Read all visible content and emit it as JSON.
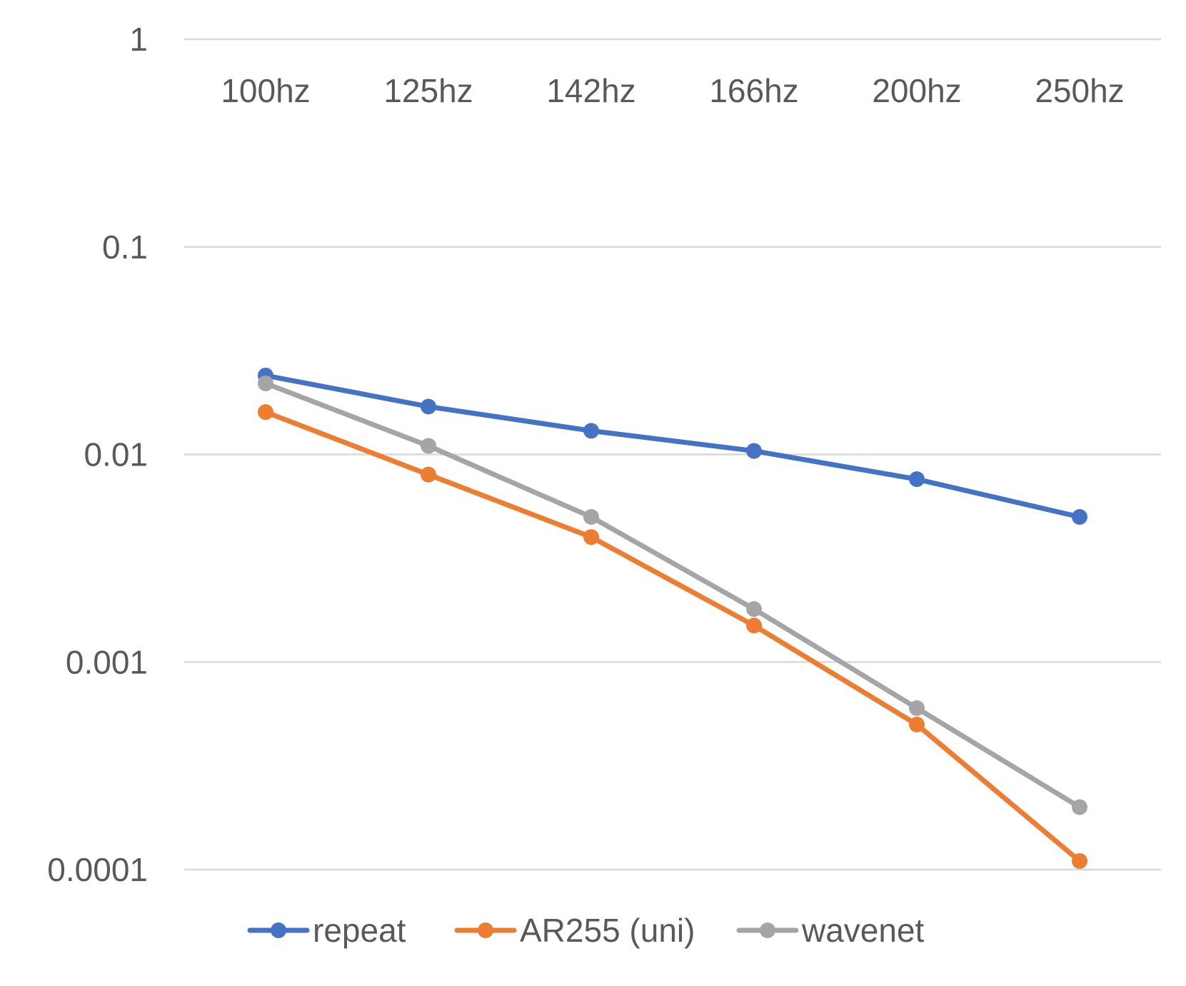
{
  "chart_data": {
    "type": "line",
    "categories": [
      "100hz",
      "125hz",
      "142hz",
      "166hz",
      "200hz",
      "250hz"
    ],
    "y_scale": "log",
    "ylim": [
      0.0001,
      1
    ],
    "y_ticks": [
      "1",
      "0.1",
      "0.01",
      "0.001",
      "0.0001"
    ],
    "grid": true,
    "legend_position": "bottom",
    "x_axis_position": "top",
    "series": [
      {
        "name": "repeat",
        "color": "#4472c4",
        "values": [
          0.024,
          0.017,
          0.013,
          0.0104,
          0.0076,
          0.005
        ]
      },
      {
        "name": "AR255 (uni)",
        "color": "#ed7d31",
        "values": [
          0.016,
          0.008,
          0.004,
          0.0015,
          0.0005,
          0.00011
        ]
      },
      {
        "name": "wavenet",
        "color": "#a5a5a5",
        "values": [
          0.022,
          0.011,
          0.005,
          0.0018,
          0.0006,
          0.0002
        ]
      }
    ]
  }
}
